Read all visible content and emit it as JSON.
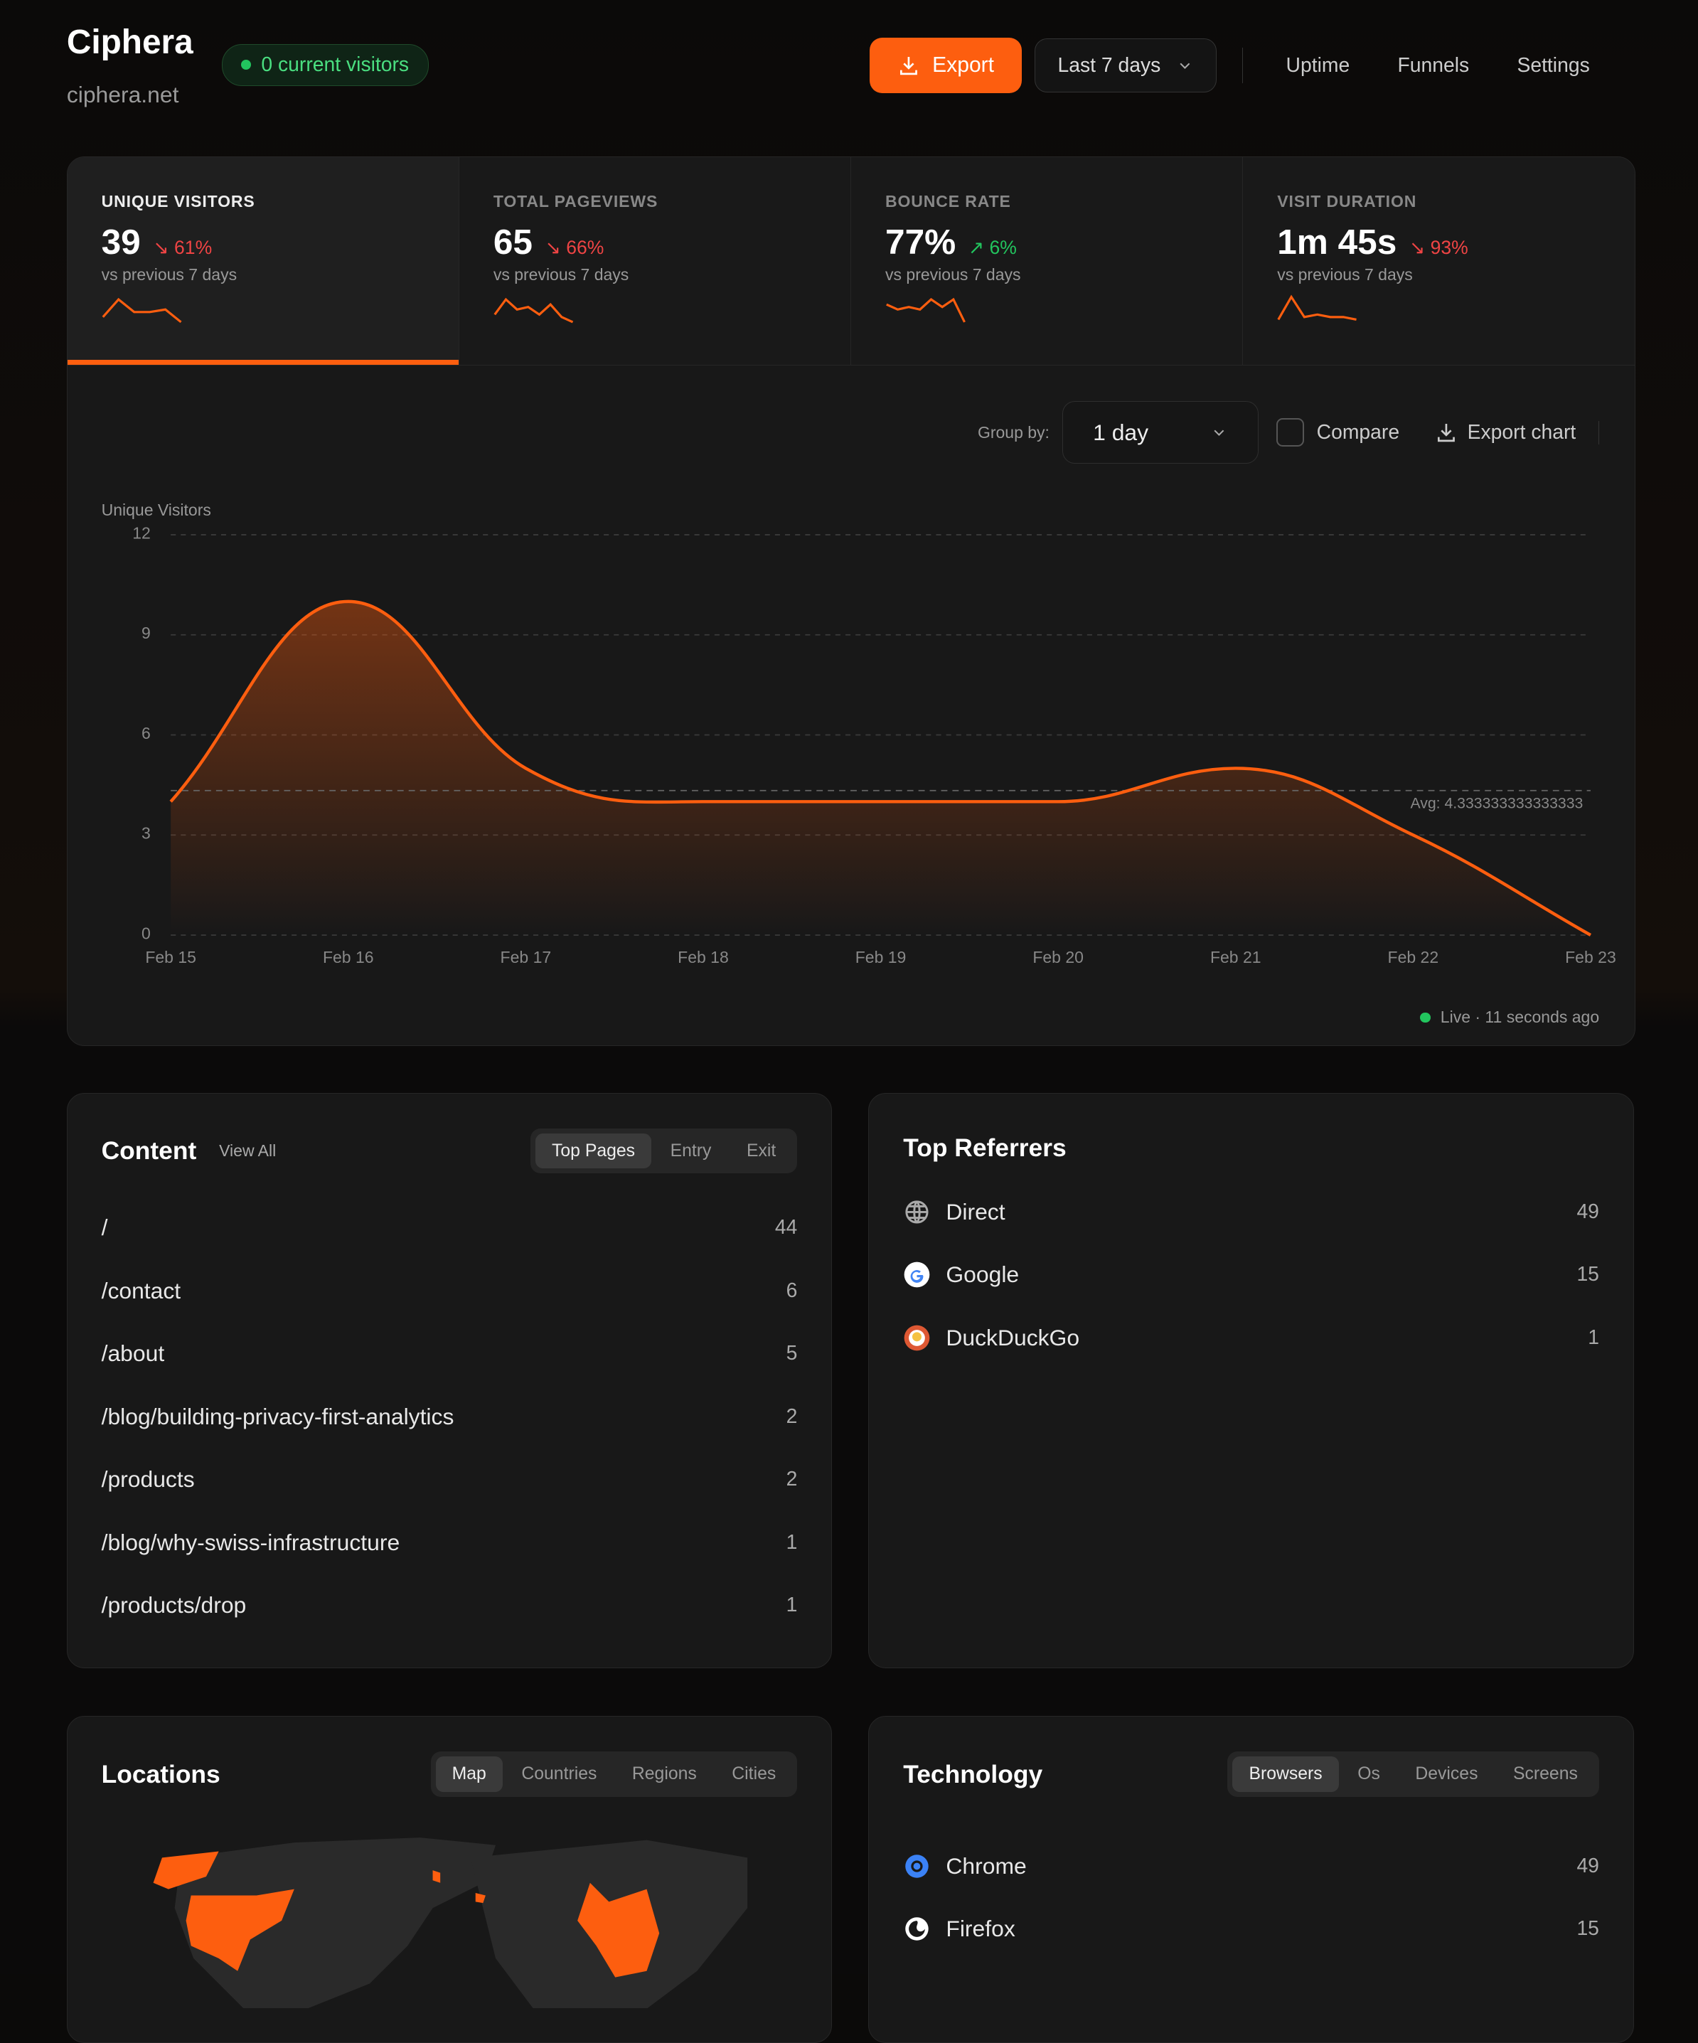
{
  "header": {
    "title": "Ciphera",
    "domain": "ciphera.net",
    "visitors_badge": "0 current visitors",
    "export": "Export",
    "range": "Last 7 days",
    "nav": [
      "Uptime",
      "Funnels",
      "Settings"
    ]
  },
  "stats": [
    {
      "label": "UNIQUE VISITORS",
      "value": "39",
      "change": "61%",
      "dir": "down",
      "sub": "vs previous 7 days",
      "active": true
    },
    {
      "label": "TOTAL PAGEVIEWS",
      "value": "65",
      "change": "66%",
      "dir": "down",
      "sub": "vs previous 7 days"
    },
    {
      "label": "BOUNCE RATE",
      "value": "77%",
      "change": "6%",
      "dir": "up",
      "sub": "vs previous 7 days"
    },
    {
      "label": "VISIT DURATION",
      "value": "1m 45s",
      "change": "93%",
      "dir": "down",
      "sub": "vs previous 7 days"
    }
  ],
  "chart_controls": {
    "group_by_label": "Group by:",
    "group_by": "1 day",
    "compare": "Compare",
    "export_chart": "Export chart",
    "live": "Live · 11 seconds ago"
  },
  "chart_data": {
    "type": "area",
    "ylabel": "Unique Visitors",
    "x": [
      "Feb 15",
      "Feb 16",
      "Feb 17",
      "Feb 18",
      "Feb 19",
      "Feb 20",
      "Feb 21",
      "Feb 22",
      "Feb 23"
    ],
    "values": [
      4,
      10,
      5,
      4,
      4,
      4,
      5,
      3,
      0
    ],
    "ylim": [
      0,
      12
    ],
    "yticks": [
      0,
      3,
      6,
      9,
      12
    ],
    "avg_label": "Avg: 4.333333333333333",
    "avg": 4.333333333333333,
    "grid": true,
    "color": "#fd5e0f"
  },
  "content": {
    "title": "Content",
    "view_all": "View All",
    "tabs": [
      "Top Pages",
      "Entry",
      "Exit"
    ],
    "rows": [
      [
        "/",
        "44"
      ],
      [
        "/contact",
        "6"
      ],
      [
        "/about",
        "5"
      ],
      [
        "/blog/building-privacy-first-analytics",
        "2"
      ],
      [
        "/products",
        "2"
      ],
      [
        "/blog/why-swiss-infrastructure",
        "1"
      ],
      [
        "/products/drop",
        "1"
      ]
    ]
  },
  "referrers": {
    "title": "Top Referrers",
    "rows": [
      {
        "name": "Direct",
        "count": "49",
        "icon": "globe-icon"
      },
      {
        "name": "Google",
        "count": "15",
        "icon": "google-icon"
      },
      {
        "name": "DuckDuckGo",
        "count": "1",
        "icon": "duckduckgo-icon"
      }
    ]
  },
  "locations": {
    "title": "Locations",
    "tabs": [
      "Map",
      "Countries",
      "Regions",
      "Cities"
    ]
  },
  "technology": {
    "title": "Technology",
    "tabs": [
      "Browsers",
      "Os",
      "Devices",
      "Screens"
    ],
    "rows": [
      {
        "name": "Chrome",
        "count": "49",
        "icon": "chrome-icon"
      },
      {
        "name": "Firefox",
        "count": "15",
        "icon": "firefox-icon"
      }
    ]
  }
}
